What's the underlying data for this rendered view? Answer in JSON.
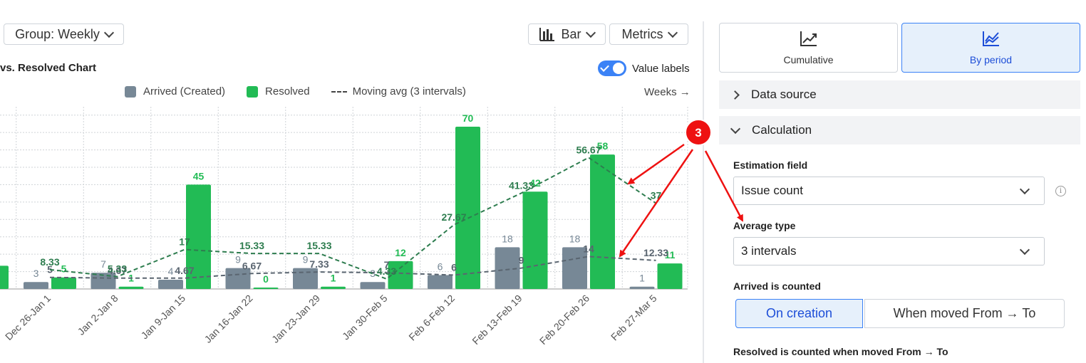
{
  "toolbar": {
    "group_label": "Group: Weekly",
    "chart_type_label": "Bar",
    "metrics_label": "Metrics",
    "value_labels_text": "Value labels",
    "value_labels_on": true
  },
  "chart_title": "vs. Resolved Chart",
  "legend": {
    "arrived": "Arrived (Created)",
    "resolved": "Resolved",
    "moving_avg": "Moving avg (3 intervals)"
  },
  "weeks_label": "Weeks →",
  "colors": {
    "arrived": "#778896",
    "resolved": "#22bb55",
    "avg_resolved": "#2e7d4f",
    "avg_arrived": "#5a6570",
    "accent": "#3b82f6",
    "annotation": "#ee1111"
  },
  "chart_data": {
    "type": "bar",
    "categories": [
      "Dec 26-Jan 1",
      "Jan 2-Jan 8",
      "Jan 9-Jan 15",
      "Jan 16-Jan 22",
      "Jan 23-Jan 29",
      "Jan 30-Feb 5",
      "Feb 6-Feb 12",
      "Feb 13-Feb 19",
      "Feb 20-Feb 26",
      "Feb 27-Mar 5"
    ],
    "series": [
      {
        "name": "Arrived (Created)",
        "values": [
          3,
          7,
          4,
          9,
          9,
          3,
          6,
          18,
          18,
          1
        ]
      },
      {
        "name": "Resolved",
        "values": [
          5,
          1,
          45,
          0,
          1,
          12,
          70,
          42,
          58,
          11
        ]
      },
      {
        "name": "Moving avg (3 intervals)",
        "kind": "resolved-avg",
        "values": [
          8.33,
          5.33,
          17,
          15.33,
          15.33,
          4.33,
          27.67,
          41.33,
          56.67,
          37
        ]
      },
      {
        "name": "Moving avg (3 intervals)",
        "kind": "arrived-avg",
        "values": [
          5,
          4.67,
          4.67,
          6.67,
          7.33,
          7,
          6,
          9,
          14,
          12.33
        ]
      }
    ],
    "ylim": [
      0,
      75
    ],
    "grid": true,
    "legend_position": "top"
  },
  "sidebar": {
    "cumulative_label": "Cumulative",
    "by_period_label": "By period",
    "by_period_active": true,
    "data_source_label": "Data source",
    "calculation_label": "Calculation",
    "estimation_field_label": "Estimation field",
    "estimation_field_value": "Issue count",
    "average_type_label": "Average type",
    "average_type_value": "3 intervals",
    "arrived_counted_label": "Arrived is counted",
    "on_creation_label": "On creation",
    "when_moved_label": "When moved From → To",
    "resolved_counted_label": "Resolved is counted when moved From → To"
  },
  "annotation": {
    "marker_text": "3"
  }
}
